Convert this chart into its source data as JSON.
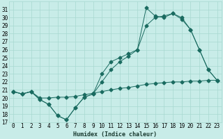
{
  "xlabel": "Humidex (Indice chaleur)",
  "bg_color": "#c8ece8",
  "grid_color": "#a8d8d0",
  "line_color": "#1a6b60",
  "xlim": [
    -0.5,
    23.5
  ],
  "ylim": [
    17,
    32
  ],
  "yticks": [
    17,
    18,
    19,
    20,
    21,
    22,
    23,
    24,
    25,
    26,
    27,
    28,
    29,
    30,
    31
  ],
  "xticks": [
    0,
    1,
    2,
    3,
    4,
    5,
    6,
    7,
    8,
    9,
    10,
    11,
    12,
    13,
    14,
    15,
    16,
    17,
    18,
    19,
    20,
    21,
    22,
    23
  ],
  "line1_x": [
    0,
    1,
    2,
    3,
    4,
    5,
    6,
    7,
    8,
    9,
    10,
    11,
    12,
    13,
    14,
    15,
    16,
    17,
    18,
    19,
    20,
    21,
    22,
    23
  ],
  "line1_y": [
    20.8,
    20.5,
    20.8,
    20.0,
    20.0,
    20.1,
    20.1,
    20.2,
    20.4,
    20.6,
    20.8,
    21.0,
    21.2,
    21.3,
    21.5,
    21.7,
    21.8,
    21.9,
    22.0,
    22.0,
    22.1,
    22.1,
    22.2,
    22.2
  ],
  "line2_x": [
    0,
    1,
    2,
    3,
    4,
    5,
    6,
    7,
    8,
    9,
    10,
    11,
    12,
    13,
    14,
    15,
    16,
    17,
    18,
    19,
    20,
    21,
    22,
    23
  ],
  "line2_y": [
    20.8,
    20.5,
    20.8,
    19.8,
    19.2,
    17.8,
    17.3,
    18.8,
    20.1,
    20.5,
    23.0,
    24.5,
    25.0,
    25.5,
    26.0,
    29.0,
    30.0,
    30.2,
    30.5,
    30.0,
    28.5,
    26.0,
    23.5,
    22.2
  ],
  "line3_x": [
    0,
    1,
    2,
    3,
    4,
    5,
    6,
    7,
    8,
    9,
    10,
    11,
    12,
    13,
    14,
    15,
    16,
    17,
    18,
    19,
    20,
    21,
    22,
    23
  ],
  "line3_y": [
    20.8,
    20.5,
    20.8,
    19.8,
    19.2,
    17.8,
    17.3,
    18.8,
    20.1,
    20.5,
    22.0,
    23.5,
    24.5,
    25.2,
    26.0,
    31.2,
    30.2,
    30.0,
    30.5,
    29.8,
    28.5,
    26.0,
    23.5,
    22.2
  ]
}
